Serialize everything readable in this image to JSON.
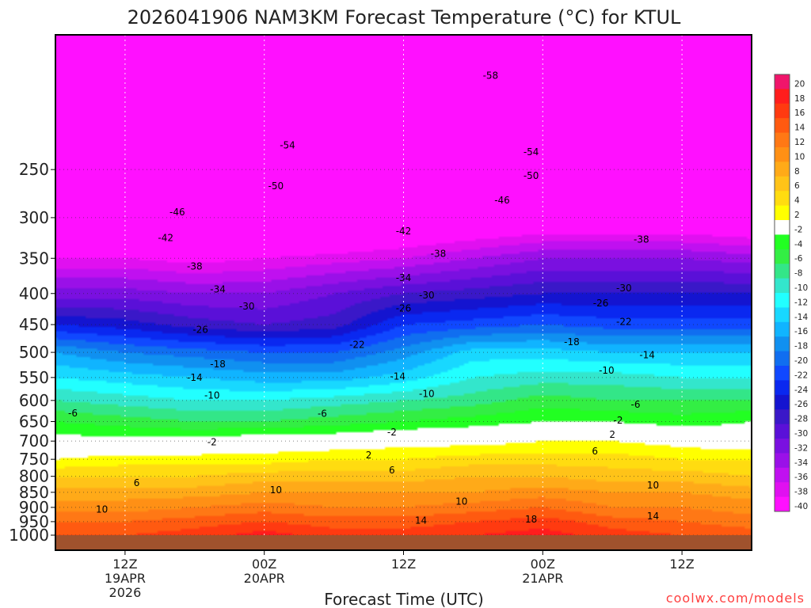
{
  "chart_data": {
    "type": "heatmap",
    "title": "2026041906 NAM3KM Forecast Temperature (°C) for KTUL",
    "xlabel": "Forecast Time (UTC)",
    "ylabel": "",
    "y_axis": {
      "type": "pressure",
      "unit": "hPa",
      "reversed": true,
      "ticks": [
        250,
        300,
        350,
        400,
        450,
        500,
        550,
        600,
        650,
        700,
        750,
        800,
        850,
        900,
        950,
        1000
      ]
    },
    "x_ticks": [
      {
        "hour": 6,
        "label": "12Z",
        "sub1": "19APR",
        "sub2": "2026"
      },
      {
        "hour": 18,
        "label": "00Z",
        "sub1": "20APR",
        "sub2": ""
      },
      {
        "hour": 30,
        "label": "12Z",
        "sub1": "",
        "sub2": ""
      },
      {
        "hour": 42,
        "label": "00Z",
        "sub1": "21APR",
        "sub2": ""
      },
      {
        "hour": 54,
        "label": "12Z",
        "sub1": "",
        "sub2": ""
      }
    ],
    "xlim_hours": [
      0,
      60
    ],
    "grid": true,
    "colorbar": {
      "ticks": [
        20,
        18,
        16,
        14,
        12,
        10,
        8,
        6,
        4,
        2,
        -2,
        -4,
        -6,
        -8,
        -10,
        -12,
        -14,
        -16,
        -18,
        -20,
        -22,
        -24,
        -26,
        -28,
        -30,
        -32,
        -34,
        -36,
        -38,
        -40
      ],
      "colors": [
        "#f0156b",
        "#ff1d1d",
        "#ff3a10",
        "#ff5a10",
        "#ff7815",
        "#ff9015",
        "#ffaa18",
        "#ffc318",
        "#ffdc10",
        "#ffff00",
        "#ffffff",
        "#22ff22",
        "#33ee44",
        "#33e688",
        "#33e6cc",
        "#22ffff",
        "#18d8ff",
        "#10b4ff",
        "#1090f0",
        "#106ef0",
        "#1048ff",
        "#0a28f0",
        "#1414d0",
        "#3a18c8",
        "#5a10d8",
        "#7a10e0",
        "#9a10e8",
        "#c010f0",
        "#e010f0",
        "#ff10ff"
      ]
    },
    "profiles": [
      {
        "hour": 0,
        "p": [
          150,
          250,
          300,
          350,
          400,
          450,
          500,
          550,
          600,
          650,
          700,
          750,
          800,
          850,
          900,
          950,
          1000
        ],
        "t": [
          -60,
          -52,
          -45,
          -38,
          -31,
          -24,
          -16,
          -12,
          -8,
          -4,
          -1,
          2,
          6,
          9,
          11,
          14,
          16
        ]
      },
      {
        "hour": 6,
        "p": [
          150,
          250,
          300,
          350,
          400,
          450,
          500,
          550,
          600,
          650,
          700,
          750,
          800,
          850,
          900,
          950,
          1000
        ],
        "t": [
          -60,
          -53,
          -46,
          -38,
          -31,
          -25,
          -18,
          -13,
          -9,
          -5,
          -1,
          3,
          6,
          9,
          11,
          14,
          16
        ]
      },
      {
        "hour": 12,
        "p": [
          150,
          250,
          300,
          350,
          400,
          450,
          500,
          550,
          600,
          650,
          700,
          750,
          800,
          850,
          900,
          950,
          1000
        ],
        "t": [
          -60,
          -53,
          -47,
          -39,
          -32,
          -27,
          -19,
          -14,
          -10,
          -6,
          -1,
          3,
          6,
          9,
          12,
          15,
          17
        ]
      },
      {
        "hour": 18,
        "p": [
          150,
          250,
          300,
          350,
          400,
          450,
          500,
          550,
          600,
          650,
          700,
          750,
          800,
          850,
          900,
          950,
          1000
        ],
        "t": [
          -60,
          -52,
          -46,
          -38,
          -32,
          -28,
          -20,
          -15,
          -10,
          -6,
          0,
          3,
          7,
          10,
          13,
          16,
          19
        ]
      },
      {
        "hour": 24,
        "p": [
          150,
          250,
          300,
          350,
          400,
          450,
          500,
          550,
          600,
          650,
          700,
          750,
          800,
          850,
          900,
          950,
          1000
        ],
        "t": [
          -60,
          -53,
          -46,
          -37,
          -30,
          -27,
          -20,
          -15,
          -9,
          -5,
          0,
          4,
          7,
          10,
          12,
          15,
          17
        ]
      },
      {
        "hour": 30,
        "p": [
          150,
          250,
          300,
          350,
          400,
          450,
          500,
          550,
          600,
          650,
          700,
          750,
          800,
          850,
          900,
          950,
          1000
        ],
        "t": [
          -60,
          -53,
          -44,
          -36,
          -28,
          -22,
          -17,
          -13,
          -8,
          -4,
          1,
          4,
          7,
          10,
          12,
          15,
          17
        ]
      },
      {
        "hour": 36,
        "p": [
          150,
          250,
          300,
          350,
          400,
          450,
          500,
          550,
          600,
          650,
          700,
          750,
          800,
          850,
          900,
          950,
          1000
        ],
        "t": [
          -60,
          -52,
          -43,
          -34,
          -27,
          -21,
          -13,
          -10,
          -7,
          -3,
          1,
          5,
          8,
          10,
          13,
          16,
          18
        ]
      },
      {
        "hour": 42,
        "p": [
          150,
          250,
          300,
          350,
          400,
          450,
          500,
          550,
          600,
          650,
          700,
          750,
          800,
          850,
          900,
          950,
          1000
        ],
        "t": [
          -60,
          -53,
          -42,
          -32,
          -26,
          -20,
          -13,
          -9,
          -5,
          -2,
          2,
          5,
          8,
          11,
          14,
          17,
          19
        ]
      },
      {
        "hour": 48,
        "p": [
          150,
          250,
          300,
          350,
          400,
          450,
          500,
          550,
          600,
          650,
          700,
          750,
          800,
          850,
          900,
          950,
          1000
        ],
        "t": [
          -60,
          -53,
          -42,
          -32,
          -26,
          -21,
          -14,
          -9,
          -6,
          -2,
          2,
          5,
          7,
          10,
          12,
          15,
          17
        ]
      },
      {
        "hour": 54,
        "p": [
          150,
          250,
          300,
          350,
          400,
          450,
          500,
          550,
          600,
          650,
          700,
          750,
          800,
          850,
          900,
          950,
          1000
        ],
        "t": [
          -60,
          -53,
          -42,
          -32,
          -26,
          -21,
          -14,
          -10,
          -6,
          -3,
          1,
          4,
          7,
          10,
          12,
          14,
          16
        ]
      },
      {
        "hour": 60,
        "p": [
          150,
          250,
          300,
          350,
          400,
          450,
          500,
          550,
          600,
          650,
          700,
          750,
          800,
          850,
          900,
          950,
          1000
        ],
        "t": [
          -59,
          -54,
          -43,
          -33,
          -26,
          -21,
          -14,
          -10,
          -6,
          -2,
          0,
          4,
          6,
          9,
          11,
          13,
          15
        ]
      }
    ],
    "contour_labels": [
      {
        "v": "-58",
        "hour": 37.5,
        "p": 175
      },
      {
        "v": "-54",
        "hour": 20,
        "p": 228
      },
      {
        "v": "-54",
        "hour": 41,
        "p": 234
      },
      {
        "v": "-50",
        "hour": 19,
        "p": 266
      },
      {
        "v": "-50",
        "hour": 41,
        "p": 256
      },
      {
        "v": "-46",
        "hour": 10.5,
        "p": 294
      },
      {
        "v": "-46",
        "hour": 38.5,
        "p": 281
      },
      {
        "v": "-42",
        "hour": 9.5,
        "p": 324
      },
      {
        "v": "-42",
        "hour": 30,
        "p": 316
      },
      {
        "v": "-38",
        "hour": 12,
        "p": 361
      },
      {
        "v": "-38",
        "hour": 33,
        "p": 344
      },
      {
        "v": "-38",
        "hour": 50.5,
        "p": 326
      },
      {
        "v": "-34",
        "hour": 14,
        "p": 394
      },
      {
        "v": "-34",
        "hour": 30,
        "p": 377
      },
      {
        "v": "-30",
        "hour": 16.5,
        "p": 420
      },
      {
        "v": "-30",
        "hour": 32,
        "p": 403
      },
      {
        "v": "-30",
        "hour": 49,
        "p": 392
      },
      {
        "v": "-26",
        "hour": 12.5,
        "p": 459
      },
      {
        "v": "-26",
        "hour": 30,
        "p": 423
      },
      {
        "v": "-26",
        "hour": 47,
        "p": 415
      },
      {
        "v": "-22",
        "hour": 26,
        "p": 486
      },
      {
        "v": "-22",
        "hour": 49,
        "p": 445
      },
      {
        "v": "-18",
        "hour": 14,
        "p": 523
      },
      {
        "v": "-18",
        "hour": 44.5,
        "p": 481
      },
      {
        "v": "-14",
        "hour": 12,
        "p": 550
      },
      {
        "v": "-14",
        "hour": 29.5,
        "p": 548
      },
      {
        "v": "-14",
        "hour": 51,
        "p": 505
      },
      {
        "v": "-10",
        "hour": 13.5,
        "p": 589
      },
      {
        "v": "-10",
        "hour": 32,
        "p": 585
      },
      {
        "v": "-10",
        "hour": 47.5,
        "p": 536
      },
      {
        "v": "-6",
        "hour": 1.5,
        "p": 630
      },
      {
        "v": "-6",
        "hour": 23,
        "p": 631
      },
      {
        "v": "-6",
        "hour": 50,
        "p": 609
      },
      {
        "v": "-2",
        "hour": 13.5,
        "p": 703
      },
      {
        "v": "-2",
        "hour": 29,
        "p": 677
      },
      {
        "v": "-2",
        "hour": 48.5,
        "p": 647
      },
      {
        "v": "2",
        "hour": 27,
        "p": 738
      },
      {
        "v": "2",
        "hour": 48,
        "p": 683
      },
      {
        "v": "6",
        "hour": 7,
        "p": 820
      },
      {
        "v": "6",
        "hour": 29,
        "p": 782
      },
      {
        "v": "6",
        "hour": 46.5,
        "p": 727
      },
      {
        "v": "10",
        "hour": 19,
        "p": 843
      },
      {
        "v": "10",
        "hour": 35,
        "p": 880
      },
      {
        "v": "10",
        "hour": 51.5,
        "p": 828
      },
      {
        "v": "10",
        "hour": 4,
        "p": 907
      },
      {
        "v": "14",
        "hour": 31.5,
        "p": 946
      },
      {
        "v": "14",
        "hour": 51.5,
        "p": 930
      },
      {
        "v": "18",
        "hour": 41,
        "p": 942
      }
    ]
  },
  "credit": "coolwx.com/models"
}
